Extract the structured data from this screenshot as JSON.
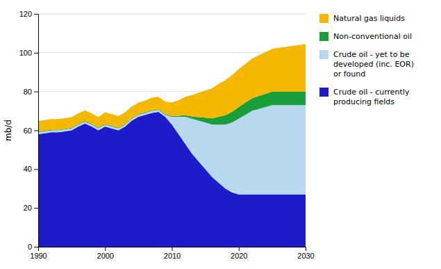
{
  "chart_data": {
    "type": "area",
    "stacked": true,
    "ylabel": "mb/d",
    "x": [
      1990,
      1991,
      1992,
      1993,
      1994,
      1995,
      1996,
      1997,
      1998,
      1999,
      2000,
      2001,
      2002,
      2003,
      2004,
      2005,
      2006,
      2007,
      2008,
      2009,
      2010,
      2011,
      2012,
      2013,
      2014,
      2015,
      2016,
      2017,
      2018,
      2019,
      2020,
      2021,
      2022,
      2023,
      2024,
      2025,
      2026,
      2027,
      2028,
      2029,
      2030
    ],
    "series": [
      {
        "name": "Crude oil - currently\nproducing fields",
        "color": "#1c1cc8",
        "values": [
          58,
          58.5,
          59,
          59,
          59.5,
          60,
          62,
          63.5,
          62,
          60,
          62,
          61,
          60,
          62,
          65,
          67,
          68,
          69,
          69.5,
          67,
          63,
          58,
          53,
          48,
          44,
          40,
          36,
          33,
          30,
          28,
          27,
          27,
          27,
          27,
          27,
          27,
          27,
          27,
          27,
          27,
          27
        ]
      },
      {
        "name": "Crude oil - yet to be\ndeveloped (inc. EOR)\nor found",
        "color": "#b8d8ee",
        "values": [
          1,
          1,
          1,
          1,
          1,
          1,
          1,
          1,
          1,
          1,
          1,
          1,
          1,
          1,
          1,
          1,
          1,
          1,
          1,
          1,
          4,
          9,
          14,
          18,
          21,
          24,
          27,
          30,
          33,
          36,
          39,
          41,
          43,
          44,
          45,
          46,
          46,
          46,
          46,
          46,
          46
        ]
      },
      {
        "name": "Non-conventional oil",
        "color": "#1a9e3a",
        "values": [
          0.3,
          0.3,
          0.3,
          0.3,
          0.3,
          0.3,
          0.3,
          0.3,
          0.3,
          0.3,
          0.3,
          0.3,
          0.3,
          0.3,
          0.3,
          0.3,
          0.3,
          0.3,
          0.3,
          0.3,
          0.3,
          0.5,
          0.8,
          1.2,
          1.8,
          2.5,
          3.2,
          4.0,
          4.8,
          5.5,
          6.0,
          6.3,
          6.5,
          6.7,
          6.8,
          7.0,
          7.0,
          7.0,
          7.0,
          7.0,
          7.0
        ]
      },
      {
        "name": "Natural gas liquids",
        "color": "#f5b800",
        "values": [
          5.5,
          5.5,
          5.5,
          5.5,
          5.5,
          5.5,
          5.5,
          5.5,
          5.5,
          5.5,
          6.0,
          6.0,
          6.0,
          6.0,
          6.0,
          6.0,
          6.0,
          6.5,
          6.5,
          6.5,
          7.0,
          8.0,
          9.5,
          11,
          12.5,
          14,
          15.5,
          17,
          18,
          19,
          19.5,
          20,
          20.5,
          21,
          21.5,
          22,
          22.5,
          23,
          23.5,
          24,
          24.5
        ]
      }
    ],
    "xlim": [
      1990,
      2030
    ],
    "xticks": [
      1990,
      2000,
      2010,
      2020,
      2030
    ],
    "ylim": [
      0,
      120
    ],
    "yticks": [
      0,
      20,
      40,
      60,
      80,
      100,
      120
    ],
    "grid": true,
    "legend": "right"
  }
}
